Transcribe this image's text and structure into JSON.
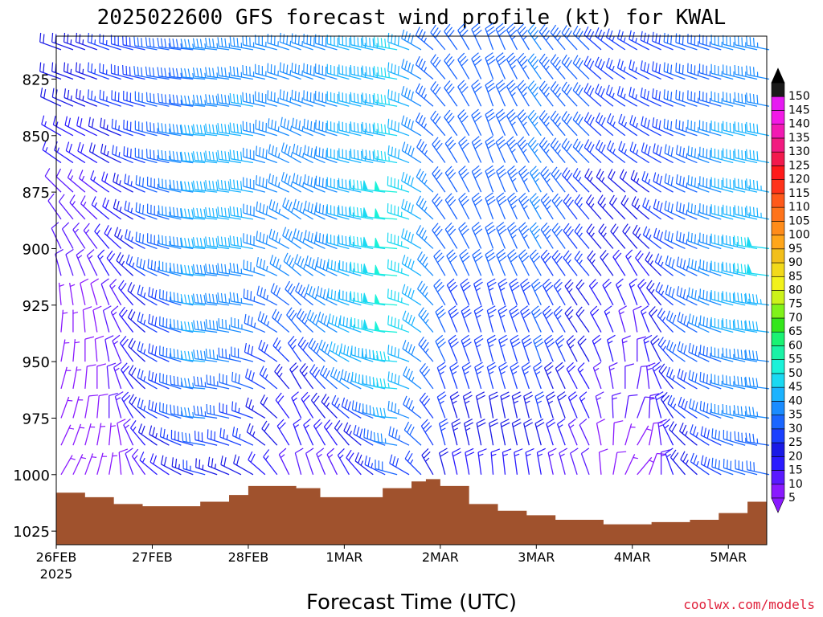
{
  "chart_data": {
    "type": "wind_barb_profile",
    "title": "2025022600 GFS forecast wind profile (kt) for KWAL",
    "xlabel": "Forecast Time (UTC)",
    "credit": "coolwx.com/models",
    "x_ticks": [
      "26FEB",
      "27FEB",
      "28FEB",
      "1MAR",
      "2MAR",
      "3MAR",
      "4MAR",
      "5MAR"
    ],
    "x_tick_year": "2025",
    "y_ticks": [
      "825",
      "850",
      "875",
      "900",
      "925",
      "950",
      "975",
      "1000",
      "1025"
    ],
    "y_tick_values": [
      825,
      850,
      875,
      900,
      925,
      950,
      975,
      1000,
      1025
    ],
    "ylim": [
      1031,
      806
    ],
    "xlim_days": [
      0,
      7.4
    ],
    "colorbar": {
      "values": [
        5,
        10,
        15,
        20,
        25,
        30,
        35,
        40,
        45,
        50,
        55,
        60,
        65,
        70,
        75,
        80,
        85,
        90,
        95,
        100,
        105,
        110,
        115,
        120,
        125,
        130,
        135,
        140,
        145,
        150
      ],
      "colors": [
        "#8a1aff",
        "#5a1aff",
        "#2a1aff",
        "#1a1ae6",
        "#1a40ff",
        "#1a66ff",
        "#1a8cff",
        "#1ab3ff",
        "#1ad9f2",
        "#1af2d9",
        "#1af2a6",
        "#1af273",
        "#33e61a",
        "#80f21a",
        "#ccf21a",
        "#f2f21a",
        "#f2d91a",
        "#f2bf1a",
        "#ffa61a",
        "#ff8c1a",
        "#ff731a",
        "#ff591a",
        "#ff331a",
        "#ff1a1a",
        "#f21a4d",
        "#f21a80",
        "#f21ab3",
        "#f21ae6",
        "#e61af2",
        "#1a1a1a"
      ]
    },
    "surface_pressure_hpa": [
      [
        0.0,
        1008
      ],
      [
        0.3,
        1010
      ],
      [
        0.6,
        1013
      ],
      [
        0.9,
        1014
      ],
      [
        1.2,
        1014
      ],
      [
        1.5,
        1012
      ],
      [
        1.8,
        1009
      ],
      [
        2.0,
        1005
      ],
      [
        2.25,
        1005
      ],
      [
        2.5,
        1006
      ],
      [
        2.75,
        1010
      ],
      [
        3.0,
        1010
      ],
      [
        3.2,
        1010
      ],
      [
        3.4,
        1006
      ],
      [
        3.7,
        1003
      ],
      [
        3.85,
        1002
      ],
      [
        4.0,
        1005
      ],
      [
        4.3,
        1013
      ],
      [
        4.6,
        1016
      ],
      [
        4.9,
        1018
      ],
      [
        5.2,
        1020
      ],
      [
        5.5,
        1020
      ],
      [
        5.7,
        1022
      ],
      [
        5.95,
        1022
      ],
      [
        6.2,
        1021
      ],
      [
        6.6,
        1020
      ],
      [
        6.9,
        1017
      ],
      [
        7.2,
        1012
      ],
      [
        7.4,
        1008
      ]
    ],
    "wind_samples_kt": {
      "time_days": [
        0.0,
        0.5,
        1.0,
        1.5,
        2.0,
        2.5,
        3.0,
        3.5,
        4.0,
        4.5,
        5.0,
        5.5,
        6.0,
        6.5,
        7.0,
        7.4
      ],
      "levels_hpa": [
        812,
        825,
        837,
        850,
        862,
        875,
        887,
        900,
        912,
        925,
        937,
        950,
        962,
        975,
        987,
        1000
      ],
      "speed_kt": [
        [
          20,
          25,
          30,
          35,
          35,
          35,
          40,
          45,
          30,
          30,
          35,
          30,
          25,
          30,
          35,
          35
        ],
        [
          20,
          25,
          30,
          35,
          35,
          35,
          40,
          45,
          30,
          30,
          35,
          30,
          25,
          30,
          35,
          35
        ],
        [
          20,
          25,
          30,
          35,
          40,
          35,
          40,
          45,
          30,
          30,
          35,
          30,
          25,
          30,
          35,
          40
        ],
        [
          15,
          20,
          30,
          40,
          40,
          35,
          40,
          45,
          30,
          30,
          35,
          30,
          25,
          30,
          40,
          40
        ],
        [
          15,
          20,
          30,
          40,
          40,
          35,
          40,
          45,
          30,
          30,
          35,
          30,
          25,
          30,
          40,
          40
        ],
        [
          10,
          15,
          30,
          40,
          40,
          35,
          40,
          50,
          30,
          30,
          35,
          25,
          20,
          30,
          40,
          45
        ],
        [
          10,
          15,
          30,
          40,
          40,
          35,
          40,
          50,
          30,
          30,
          35,
          25,
          20,
          30,
          40,
          45
        ],
        [
          10,
          15,
          30,
          40,
          40,
          35,
          40,
          50,
          30,
          30,
          35,
          25,
          20,
          30,
          40,
          50
        ],
        [
          10,
          15,
          30,
          40,
          35,
          35,
          40,
          50,
          30,
          30,
          30,
          25,
          15,
          30,
          40,
          50
        ],
        [
          5,
          10,
          25,
          40,
          35,
          30,
          40,
          50,
          30,
          25,
          30,
          20,
          15,
          30,
          40,
          45
        ],
        [
          5,
          10,
          25,
          40,
          35,
          30,
          40,
          50,
          30,
          25,
          30,
          20,
          10,
          30,
          40,
          40
        ],
        [
          5,
          10,
          25,
          40,
          30,
          25,
          40,
          45,
          30,
          25,
          30,
          20,
          10,
          30,
          35,
          40
        ],
        [
          5,
          10,
          25,
          35,
          30,
          20,
          35,
          45,
          25,
          25,
          25,
          15,
          10,
          25,
          35,
          40
        ],
        [
          5,
          10,
          25,
          35,
          25,
          15,
          25,
          40,
          25,
          20,
          25,
          15,
          10,
          25,
          35,
          35
        ],
        [
          5,
          5,
          20,
          30,
          25,
          15,
          20,
          35,
          25,
          20,
          20,
          10,
          5,
          20,
          30,
          35
        ],
        [
          5,
          5,
          15,
          25,
          20,
          10,
          15,
          30,
          20,
          15,
          15,
          10,
          5,
          20,
          30,
          30
        ]
      ],
      "dir_from_deg": [
        [
          290,
          290,
          280,
          275,
          280,
          290,
          285,
          280,
          320,
          340,
          325,
          315,
          300,
          290,
          285,
          280
        ],
        [
          290,
          290,
          280,
          275,
          280,
          290,
          285,
          280,
          320,
          340,
          325,
          315,
          300,
          290,
          285,
          280
        ],
        [
          295,
          290,
          285,
          275,
          280,
          290,
          285,
          280,
          320,
          340,
          325,
          315,
          300,
          290,
          285,
          280
        ],
        [
          300,
          295,
          285,
          275,
          280,
          295,
          285,
          280,
          320,
          340,
          325,
          315,
          305,
          290,
          285,
          280
        ],
        [
          305,
          300,
          285,
          275,
          280,
          300,
          285,
          280,
          325,
          340,
          325,
          315,
          305,
          295,
          285,
          280
        ],
        [
          315,
          305,
          290,
          275,
          280,
          300,
          285,
          275,
          325,
          340,
          330,
          315,
          310,
          295,
          285,
          280
        ],
        [
          325,
          310,
          290,
          275,
          280,
          305,
          285,
          275,
          325,
          340,
          330,
          320,
          315,
          295,
          285,
          280
        ],
        [
          335,
          320,
          290,
          275,
          280,
          305,
          285,
          275,
          325,
          340,
          330,
          320,
          320,
          295,
          285,
          275
        ],
        [
          345,
          330,
          295,
          275,
          280,
          310,
          290,
          275,
          330,
          340,
          330,
          320,
          330,
          300,
          285,
          275
        ],
        [
          355,
          340,
          300,
          275,
          280,
          315,
          290,
          275,
          330,
          345,
          335,
          325,
          340,
          300,
          285,
          275
        ],
        [
          5,
          345,
          300,
          275,
          285,
          320,
          295,
          275,
          335,
          345,
          335,
          325,
          350,
          305,
          285,
          275
        ],
        [
          10,
          350,
          300,
          275,
          285,
          325,
          300,
          275,
          335,
          345,
          340,
          330,
          360,
          305,
          285,
          275
        ],
        [
          15,
          355,
          300,
          275,
          290,
          330,
          305,
          275,
          340,
          345,
          340,
          330,
          10,
          305,
          285,
          275
        ],
        [
          20,
          360,
          300,
          275,
          290,
          335,
          310,
          275,
          340,
          350,
          345,
          335,
          20,
          310,
          285,
          275
        ],
        [
          25,
          5,
          305,
          280,
          295,
          340,
          320,
          280,
          345,
          350,
          345,
          335,
          30,
          315,
          290,
          275
        ],
        [
          30,
          10,
          310,
          285,
          300,
          345,
          330,
          285,
          345,
          355,
          350,
          340,
          40,
          320,
          290,
          280
        ]
      ]
    }
  }
}
